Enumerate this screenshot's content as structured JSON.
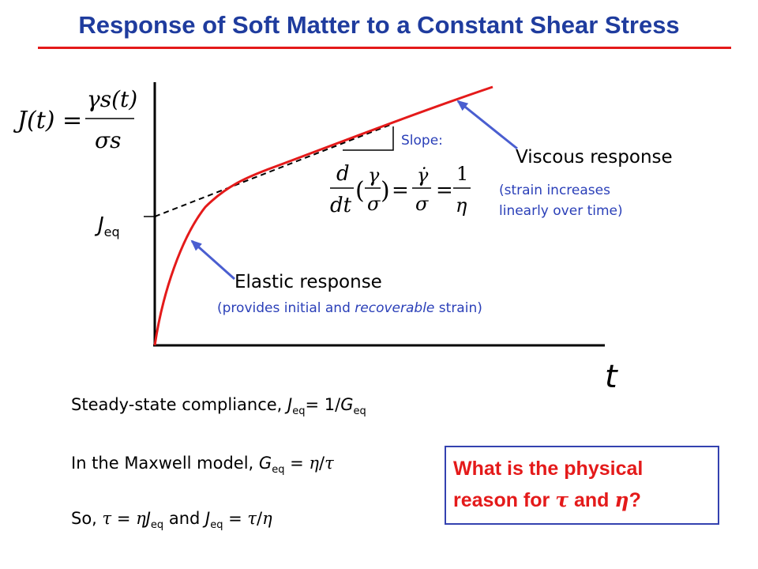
{
  "title": "Response of Soft Matter to a Constant Shear Stress",
  "compliance_formula": {
    "lhs": "J(t) =",
    "numerator": "γs(t)",
    "denominator": "σs"
  },
  "slope": {
    "label": "Slope:",
    "formula": {
      "d": "d",
      "dt": "dt",
      "paren_frac_num": "γ",
      "paren_frac_den": "σ",
      "dot_frac_num": "γ̇",
      "dot_frac_den": "σ",
      "one": "1",
      "eta": "η"
    }
  },
  "viscous": {
    "label": "Viscous response",
    "note_line1": "(strain increases",
    "note_line2": "linearly over time)"
  },
  "elastic": {
    "label": "Elastic response",
    "note_pre": "(provides initial and ",
    "note_italic": "recoverable",
    "note_post": " strain)"
  },
  "axis": {
    "y_marker": "J",
    "y_marker_sub": "eq",
    "x_label": "t"
  },
  "statements": {
    "line1": {
      "text": "Steady-state compliance, ",
      "j": "J",
      "sub1": "eq",
      "mid": "= 1/",
      "g": "G",
      "sub2": "eq"
    },
    "line2": {
      "text": "In the Maxwell model, ",
      "g": "G",
      "sub": "eq",
      "mid": " = ",
      "eta": "η",
      "slash": "/",
      "tau": "τ"
    },
    "line3": {
      "text": "So, ",
      "tau": "τ",
      "eq1": " = ",
      "eta": "η",
      "j": "J",
      "sub": "eq",
      "and": " and ",
      "j2": "J",
      "sub2": "eq",
      "eq2": " = ",
      "tau2": "τ",
      "slash": "/",
      "eta2": "η"
    }
  },
  "question": {
    "line1": "What is the physical",
    "line2_pre": "reason for ",
    "tau": "τ",
    "and": " and ",
    "eta": "η",
    "end": "?"
  },
  "colors": {
    "title": "#1f3c9e",
    "rule": "#e41a1a",
    "curve": "#e41a1a",
    "arrow": "#4a5ed0",
    "note_text": "#2a3fb8",
    "question_text": "#e41a1a",
    "question_border": "#3442b0"
  }
}
